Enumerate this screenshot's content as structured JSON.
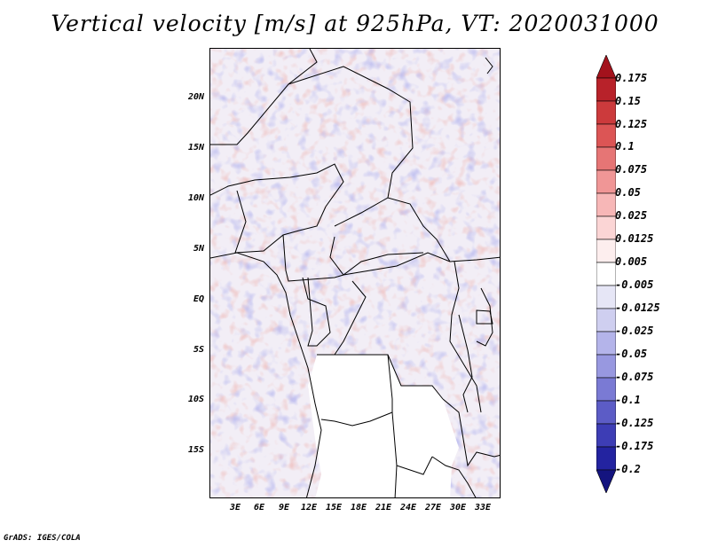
{
  "title": "Vertical velocity [m/s] at 925hPa, VT: 2020031000",
  "credit": "GrADS: IGES/COLA",
  "map": {
    "lat_labels": [
      "20N",
      "15N",
      "10N",
      "5N",
      "EQ",
      "5S",
      "10S",
      "15S"
    ],
    "lon_labels": [
      "3E",
      "6E",
      "9E",
      "12E",
      "15E",
      "18E",
      "21E",
      "24E",
      "27E",
      "30E",
      "33E"
    ]
  },
  "colorbar": {
    "labels": [
      "0.175",
      "0.15",
      "0.125",
      "0.1",
      "0.075",
      "0.05",
      "0.025",
      "0.0125",
      "0.005",
      "-0.005",
      "-0.0125",
      "-0.025",
      "-0.05",
      "-0.075",
      "-0.1",
      "-0.125",
      "-0.175",
      "-0.2"
    ],
    "colors": [
      "#a3121c",
      "#b8222a",
      "#cc3a3c",
      "#dc5555",
      "#e67575",
      "#f09696",
      "#f7b7b7",
      "#fbd5d5",
      "#fdeeee",
      "#ffffff",
      "#e6e6f6",
      "#cfcff0",
      "#b4b4ea",
      "#9898e0",
      "#7a7ad4",
      "#5c5cc6",
      "#3d3db5",
      "#2323a0",
      "#14147f"
    ]
  }
}
